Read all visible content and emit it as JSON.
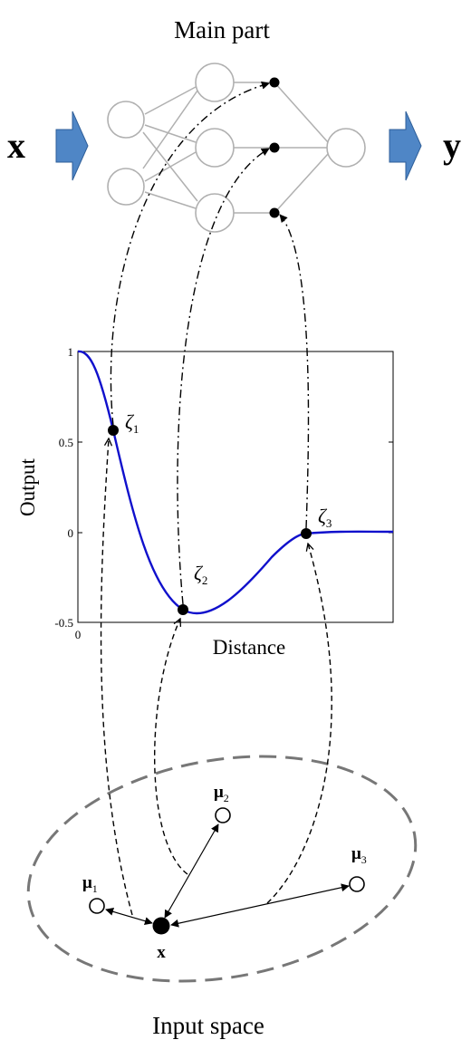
{
  "top": {
    "title": "Main part",
    "input_label": "x",
    "output_label": "y"
  },
  "plot": {
    "xlabel": "Distance",
    "ylabel": "Output",
    "ytick_labels": [
      "1",
      "0.5",
      "0",
      "-0.5"
    ],
    "xtick_labels": [
      "0"
    ],
    "zeta_labels": [
      {
        "sym": "ζ",
        "sub": "1"
      },
      {
        "sym": "ζ",
        "sub": "2"
      },
      {
        "sym": "ζ",
        "sub": "3"
      }
    ]
  },
  "bottom": {
    "title": "Input space",
    "x_label": "x",
    "mu_labels": [
      {
        "sym": "μ",
        "sub": "1"
      },
      {
        "sym": "μ",
        "sub": "2"
      },
      {
        "sym": "μ",
        "sub": "3"
      }
    ]
  },
  "colors": {
    "arrow_fill": "#4f86c6",
    "arrow_stroke": "#2f5f99",
    "curve": "#1010cc",
    "network": "#b0b0b0",
    "ellipse": "#777777"
  }
}
